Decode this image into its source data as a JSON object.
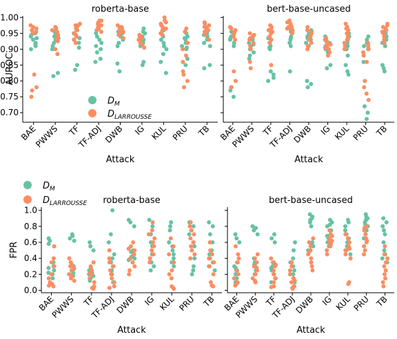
{
  "colors": {
    "dm": "#66c2a5",
    "dl": "#fc8d62"
  },
  "legend": {
    "dm_label": "D_M",
    "dl_label": "D_LARROUSSE",
    "dm_sub": "M",
    "dl_sub": "LARROUSSE"
  },
  "chart_data": [
    {
      "type": "scatter",
      "title": "roberta-base",
      "xlabel": "Attack",
      "ylabel": "AUROC",
      "categories": [
        "BAE",
        "PWWS",
        "TF",
        "TF-ADJ",
        "DWB",
        "IG",
        "KUL",
        "PRU",
        "TB"
      ],
      "ylim": [
        0.67,
        1.005
      ],
      "yticks": [
        0.7,
        0.75,
        0.8,
        0.85,
        0.9,
        0.95,
        1.0
      ],
      "series": [
        {
          "name": "D_M",
          "values": [
            [
              0.95,
              0.94,
              0.93,
              0.92,
              0.945,
              0.91,
              0.9,
              0.935,
              0.96,
              0.915
            ],
            [
              0.93,
              0.94,
              0.92,
              0.95,
              0.91,
              0.9,
              0.825,
              0.815,
              0.955,
              0.935
            ],
            [
              0.96,
              0.945,
              0.935,
              0.93,
              0.92,
              0.95,
              0.85,
              0.835,
              0.97,
              0.905
            ],
            [
              0.94,
              0.92,
              0.93,
              0.95,
              0.96,
              0.9,
              0.87,
              0.86,
              0.91,
              0.89
            ],
            [
              0.95,
              0.94,
              0.93,
              0.92,
              0.955,
              0.91,
              0.83,
              0.855,
              0.97,
              0.945
            ],
            [
              0.93,
              0.94,
              0.92,
              0.95,
              0.955,
              0.91,
              0.86,
              0.85,
              0.94,
              0.965
            ],
            [
              0.92,
              0.91,
              0.93,
              0.94,
              0.9,
              0.95,
              0.86,
              0.825,
              0.96,
              0.885
            ],
            [
              0.93,
              0.92,
              0.94,
              0.91,
              0.9,
              0.95,
              0.87,
              0.85,
              0.935,
              0.905
            ],
            [
              0.95,
              0.94,
              0.92,
              0.93,
              0.91,
              0.96,
              0.85,
              0.84,
              0.97,
              0.945
            ]
          ]
        },
        {
          "name": "D_LARROUSSE",
          "values": [
            [
              0.97,
              0.96,
              0.95,
              0.965,
              0.78,
              0.77,
              0.82,
              0.75,
              0.975,
              0.955
            ],
            [
              0.965,
              0.96,
              0.95,
              0.935,
              0.945,
              0.885,
              0.9,
              0.955,
              0.97,
              0.925
            ],
            [
              0.98,
              0.975,
              0.965,
              0.95,
              0.94,
              0.93,
              0.975,
              0.92,
              0.96,
              0.945
            ],
            [
              0.99,
              0.98,
              0.975,
              0.985,
              0.97,
              0.955,
              0.99,
              0.96,
              0.975,
              0.965
            ],
            [
              0.97,
              0.965,
              0.955,
              0.95,
              0.96,
              0.935,
              0.945,
              0.975,
              0.955,
              0.965
            ],
            [
              0.94,
              0.93,
              0.92,
              0.925,
              0.915,
              0.935,
              0.945,
              0.905,
              0.94,
              0.93
            ],
            [
              1.0,
              0.99,
              0.98,
              0.975,
              0.96,
              0.95,
              0.945,
              0.97,
              0.985,
              0.965
            ],
            [
              0.965,
              0.955,
              0.92,
              0.9,
              0.88,
              0.86,
              0.83,
              0.8,
              0.78,
              0.82
            ],
            [
              0.985,
              0.98,
              0.97,
              0.96,
              0.955,
              0.945,
              0.93,
              0.975,
              0.965,
              0.95
            ]
          ]
        }
      ]
    },
    {
      "type": "scatter",
      "title": "bert-base-uncased",
      "xlabel": "Attack",
      "ylabel": "",
      "categories": [
        "BAE",
        "PWWS",
        "TF",
        "TF-ADJ",
        "DWB",
        "IG",
        "KUL",
        "PRU",
        "TB"
      ],
      "ylim": [
        0.67,
        1.005
      ],
      "series": [
        {
          "name": "D_M",
          "values": [
            [
              0.94,
              0.93,
              0.92,
              0.95,
              0.91,
              0.78,
              0.77,
              0.75,
              0.955,
              0.935
            ],
            [
              0.93,
              0.92,
              0.91,
              0.9,
              0.94,
              0.88,
              0.87,
              0.89,
              0.935,
              0.915
            ],
            [
              0.92,
              0.91,
              0.9,
              0.93,
              0.83,
              0.82,
              0.81,
              0.8,
              0.935,
              0.905
            ],
            [
              0.96,
              0.95,
              0.94,
              0.93,
              0.92,
              0.97,
              0.91,
              0.83,
              0.955,
              0.935
            ],
            [
              0.95,
              0.94,
              0.93,
              0.78,
              0.79,
              0.8,
              0.96,
              0.92,
              0.91,
              0.935
            ],
            [
              0.93,
              0.92,
              0.91,
              0.9,
              0.85,
              0.84,
              0.94,
              0.89,
              0.925,
              0.915
            ],
            [
              0.95,
              0.94,
              0.93,
              0.92,
              0.91,
              0.9,
              0.83,
              0.82,
              0.85,
              0.88
            ],
            [
              0.93,
              0.92,
              0.91,
              0.9,
              0.94,
              0.86,
              0.72,
              0.7,
              0.68,
              0.92
            ],
            [
              0.96,
              0.95,
              0.94,
              0.93,
              0.92,
              0.91,
              0.85,
              0.84,
              0.83,
              0.955
            ]
          ]
        },
        {
          "name": "D_LARROUSSE",
          "values": [
            [
              0.97,
              0.96,
              0.95,
              0.94,
              0.93,
              0.83,
              0.8,
              0.78,
              0.965,
              0.955
            ],
            [
              0.95,
              0.94,
              0.93,
              0.92,
              0.91,
              0.9,
              0.86,
              0.84,
              0.945,
              0.935
            ],
            [
              0.97,
              0.96,
              0.95,
              0.94,
              0.93,
              0.92,
              0.85,
              0.975,
              0.965,
              0.955
            ],
            [
              0.99,
              0.98,
              0.975,
              0.97,
              0.96,
              0.955,
              0.95,
              0.985,
              0.965,
              0.97
            ],
            [
              0.97,
              0.96,
              0.95,
              0.94,
              0.93,
              0.92,
              0.91,
              0.9,
              0.955,
              0.945
            ],
            [
              0.93,
              0.92,
              0.91,
              0.9,
              0.89,
              0.88,
              0.935,
              0.925,
              0.915,
              0.905
            ],
            [
              0.98,
              0.97,
              0.96,
              0.95,
              0.94,
              0.93,
              0.92,
              0.91,
              0.9,
              0.965
            ],
            [
              0.92,
              0.91,
              0.9,
              0.89,
              0.88,
              0.86,
              0.8,
              0.78,
              0.76,
              0.74
            ],
            [
              0.98,
              0.97,
              0.96,
              0.95,
              0.94,
              0.93,
              0.92,
              0.975,
              0.965,
              0.955
            ]
          ]
        }
      ]
    },
    {
      "type": "scatter",
      "title": "roberta-base",
      "xlabel": "Attack",
      "ylabel": "FPR",
      "categories": [
        "BAE",
        "PWWS",
        "TF",
        "TF-ADJ",
        "DWB",
        "IG",
        "KUL",
        "PRU",
        "TB"
      ],
      "ylim": [
        -0.03,
        1.04
      ],
      "yticks": [
        0.0,
        0.2,
        0.4,
        0.6,
        0.8,
        1.0
      ],
      "series": [
        {
          "name": "D_M",
          "values": [
            [
              0.65,
              0.62,
              0.58,
              0.3,
              0.28,
              0.25,
              0.22,
              0.2,
              0.35,
              0.15
            ],
            [
              0.7,
              0.68,
              0.65,
              0.62,
              0.3,
              0.25,
              0.22,
              0.2,
              0.18,
              0.27
            ],
            [
              0.6,
              0.55,
              0.5,
              0.25,
              0.22,
              0.2,
              0.18,
              0.15,
              0.28,
              0.12
            ],
            [
              1.0,
              0.7,
              0.6,
              0.45,
              0.4,
              0.35,
              0.3,
              0.25,
              0.2,
              0.1
            ],
            [
              0.88,
              0.85,
              0.8,
              0.5,
              0.45,
              0.4,
              0.38,
              0.35,
              0.42,
              0.48
            ],
            [
              0.88,
              0.8,
              0.7,
              0.55,
              0.45,
              0.4,
              0.35,
              0.3,
              0.25,
              0.6
            ],
            [
              0.85,
              0.8,
              0.75,
              0.6,
              0.55,
              0.5,
              0.45,
              0.4,
              0.35,
              0.3
            ],
            [
              0.85,
              0.8,
              0.75,
              0.6,
              0.55,
              0.4,
              0.3,
              0.25,
              0.2,
              0.7
            ],
            [
              0.85,
              0.8,
              0.7,
              0.6,
              0.5,
              0.45,
              0.4,
              0.35,
              0.3,
              0.25
            ]
          ]
        },
        {
          "name": "D_LARROUSSE",
          "values": [
            [
              0.55,
              0.4,
              0.3,
              0.2,
              0.1,
              0.08,
              0.06,
              0.05,
              0.15,
              0.35
            ],
            [
              0.4,
              0.35,
              0.3,
              0.28,
              0.25,
              0.2,
              0.18,
              0.15,
              0.12,
              0.32
            ],
            [
              0.35,
              0.3,
              0.25,
              0.2,
              0.15,
              0.1,
              0.05,
              0.03,
              0.02,
              0.22
            ],
            [
              0.5,
              0.4,
              0.3,
              0.25,
              0.2,
              0.15,
              0.1,
              0.05,
              0.03,
              0.35
            ],
            [
              0.6,
              0.55,
              0.5,
              0.45,
              0.4,
              0.35,
              0.3,
              0.25,
              0.2,
              0.52
            ],
            [
              0.85,
              0.75,
              0.65,
              0.55,
              0.45,
              0.4,
              0.35,
              0.7,
              0.6,
              0.5
            ],
            [
              0.65,
              0.55,
              0.45,
              0.35,
              0.25,
              0.2,
              0.15,
              0.05,
              0.03,
              0.02
            ],
            [
              0.85,
              0.8,
              0.75,
              0.7,
              0.65,
              0.6,
              0.55,
              0.5,
              0.45,
              0.4
            ],
            [
              0.6,
              0.5,
              0.4,
              0.3,
              0.2,
              0.1,
              0.06,
              0.05,
              0.45,
              0.35
            ]
          ]
        }
      ]
    },
    {
      "type": "scatter",
      "title": "bert-base-uncased",
      "xlabel": "Attack",
      "ylabel": "",
      "categories": [
        "BAE",
        "PWWS",
        "TF",
        "TF-ADJ",
        "DWB",
        "IG",
        "KUL",
        "PRU",
        "TB"
      ],
      "ylim": [
        -0.03,
        1.04
      ],
      "series": [
        {
          "name": "D_M",
          "values": [
            [
              0.7,
              0.65,
              0.6,
              0.35,
              0.3,
              0.25,
              0.2,
              0.15,
              0.1,
              0.28
            ],
            [
              0.8,
              0.78,
              0.75,
              0.7,
              0.4,
              0.35,
              0.3,
              0.25,
              0.2,
              0.32
            ],
            [
              0.7,
              0.65,
              0.6,
              0.35,
              0.3,
              0.25,
              0.2,
              0.15,
              0.1,
              0.28
            ],
            [
              0.6,
              0.5,
              0.4,
              0.35,
              0.3,
              0.25,
              0.2,
              0.15,
              0.1,
              0.05
            ],
            [
              0.95,
              0.92,
              0.9,
              0.85,
              0.8,
              0.6,
              0.55,
              0.5,
              0.88,
              0.58
            ],
            [
              0.88,
              0.85,
              0.8,
              0.75,
              0.7,
              0.65,
              0.6,
              0.55,
              0.82,
              0.68
            ],
            [
              0.88,
              0.85,
              0.8,
              0.75,
              0.7,
              0.6,
              0.55,
              0.5,
              0.45,
              0.65
            ],
            [
              0.95,
              0.92,
              0.9,
              0.88,
              0.85,
              0.8,
              0.75,
              0.7,
              0.65,
              0.82
            ],
            [
              0.9,
              0.85,
              0.8,
              0.75,
              0.7,
              0.5,
              0.45,
              0.4,
              0.35,
              0.6
            ]
          ]
        },
        {
          "name": "D_LARROUSSE",
          "values": [
            [
              0.55,
              0.45,
              0.35,
              0.25,
              0.15,
              0.1,
              0.08,
              0.06,
              0.4,
              0.2
            ],
            [
              0.45,
              0.4,
              0.35,
              0.3,
              0.25,
              0.2,
              0.15,
              0.12,
              0.1,
              0.28
            ],
            [
              0.4,
              0.35,
              0.3,
              0.25,
              0.2,
              0.15,
              0.1,
              0.05,
              0.04,
              0.32
            ],
            [
              0.35,
              0.3,
              0.25,
              0.2,
              0.15,
              0.1,
              0.05,
              0.03,
              0.02,
              0.12
            ],
            [
              0.65,
              0.6,
              0.55,
              0.5,
              0.45,
              0.4,
              0.35,
              0.3,
              0.25,
              0.48
            ],
            [
              0.75,
              0.7,
              0.65,
              0.6,
              0.55,
              0.5,
              0.45,
              0.68,
              0.58,
              0.62
            ],
            [
              0.7,
              0.65,
              0.6,
              0.55,
              0.5,
              0.45,
              0.4,
              0.1,
              0.08,
              0.52
            ],
            [
              0.8,
              0.75,
              0.7,
              0.65,
              0.6,
              0.55,
              0.5,
              0.45,
              0.78,
              0.62
            ],
            [
              0.55,
              0.45,
              0.35,
              0.25,
              0.2,
              0.15,
              0.1,
              0.05,
              0.4,
              0.3
            ]
          ]
        }
      ]
    }
  ]
}
